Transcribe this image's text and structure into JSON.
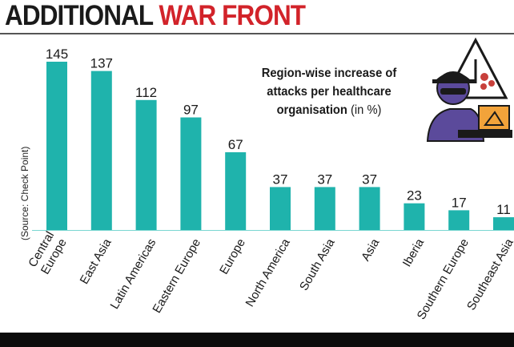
{
  "headline": {
    "part1": "ADDITIONAL",
    "part2": "WAR FRONT"
  },
  "source": "(Source: Check Point)",
  "note": {
    "bold": "Region-wise increase of attacks per healthcare organisation",
    "normal": "(in %)"
  },
  "colors": {
    "bar": "#1fb3ac",
    "headline_red": "#d2232a",
    "headline_dark": "#1a1a1a",
    "illustration_purple": "#5b4a9b"
  },
  "illustration": {
    "icon": "hacker-with-laptop-and-biohazard-warning-icon"
  },
  "chart_data": {
    "type": "bar",
    "categories": [
      "Central Europe",
      "East Asia",
      "Latin Americas",
      "Eastern Europe",
      "Europe",
      "North America",
      "South Asia",
      "Asia",
      "Iberia",
      "Southern Europe",
      "Southeast Asia"
    ],
    "values": [
      145,
      137,
      112,
      97,
      67,
      37,
      37,
      37,
      23,
      17,
      11
    ],
    "data_labels": [
      "145",
      "137",
      "112",
      "97",
      "67",
      "37",
      "37",
      "37",
      "23",
      "17",
      "11"
    ],
    "title": "Region-wise increase of attacks per healthcare organisation (in %)",
    "ylim": [
      0,
      145
    ]
  }
}
